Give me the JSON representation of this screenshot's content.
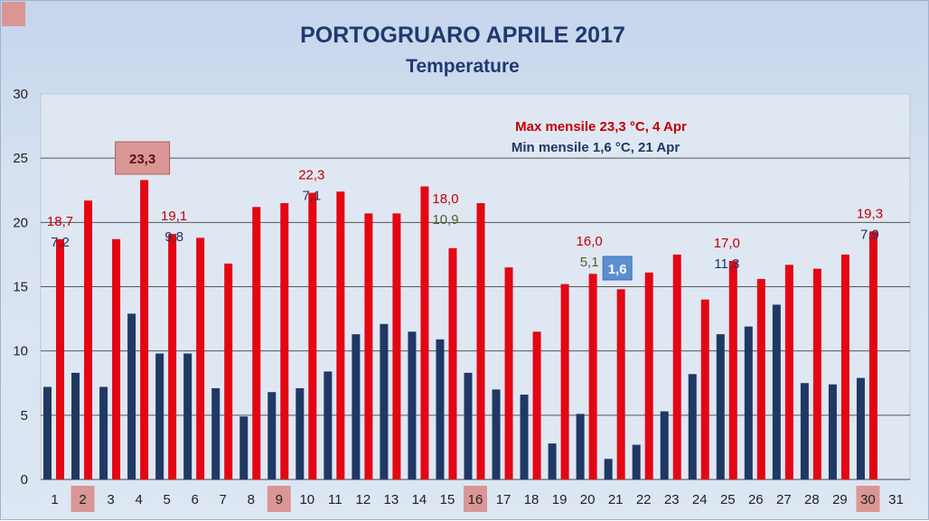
{
  "chart_data": {
    "type": "bar",
    "title": "PORTOGRUARO APRILE 2017",
    "subtitle": "Temperature",
    "categories": [
      "1",
      "2",
      "3",
      "4",
      "5",
      "6",
      "7",
      "8",
      "9",
      "10",
      "11",
      "12",
      "13",
      "14",
      "15",
      "16",
      "17",
      "18",
      "19",
      "20",
      "21",
      "22",
      "23",
      "24",
      "25",
      "26",
      "27",
      "28",
      "29",
      "30",
      "31"
    ],
    "highlighted_categories": [
      "2",
      "9",
      "16",
      "30"
    ],
    "ylim": [
      0,
      30
    ],
    "yticks": [
      0,
      5,
      10,
      15,
      20,
      25,
      30
    ],
    "grid": true,
    "series": [
      {
        "color": "#1f3864",
        "values": [
          7.2,
          8.3,
          7.2,
          12.9,
          9.8,
          9.8,
          7.1,
          4.9,
          6.8,
          7.1,
          8.4,
          11.3,
          12.1,
          11.5,
          10.9,
          8.3,
          7.0,
          6.6,
          2.8,
          5.1,
          1.6,
          2.7,
          5.3,
          8.2,
          11.3,
          11.9,
          13.6,
          7.5,
          7.4,
          7.9,
          null
        ]
      },
      {
        "color": "#e30613",
        "values": [
          18.7,
          21.7,
          18.7,
          23.3,
          19.1,
          18.8,
          16.8,
          21.2,
          21.5,
          22.3,
          22.4,
          20.7,
          20.7,
          22.8,
          18.0,
          21.5,
          16.5,
          11.5,
          15.2,
          16.0,
          14.8,
          16.1,
          17.5,
          14.0,
          17.0,
          15.6,
          16.7,
          16.4,
          17.5,
          19.3,
          null
        ]
      }
    ],
    "data_labels": [
      {
        "day": "1",
        "text": "18,7",
        "color": "#c00000"
      },
      {
        "day": "1",
        "text": "7,2",
        "color": "#1f3864"
      },
      {
        "day": "4",
        "text": "23,3",
        "color": "#5a1010",
        "boxed": true
      },
      {
        "day": "5",
        "text": "19,1",
        "color": "#c00000"
      },
      {
        "day": "5",
        "text": "9,8",
        "color": "#1f3864"
      },
      {
        "day": "10",
        "text": "22,3",
        "color": "#c00000"
      },
      {
        "day": "10",
        "text": "7,1",
        "color": "#1f3864"
      },
      {
        "day": "15",
        "text": "18,0",
        "color": "#c00000"
      },
      {
        "day": "15",
        "text": "10,9",
        "color": "#4f6228"
      },
      {
        "day": "20",
        "text": "16,0",
        "color": "#c00000"
      },
      {
        "day": "20",
        "text": "5,1",
        "color": "#4f6228"
      },
      {
        "day": "21",
        "text": "1,6",
        "color": "#ffffff",
        "boxed": true
      },
      {
        "day": "25",
        "text": "17,0",
        "color": "#c00000"
      },
      {
        "day": "25",
        "text": "11,3",
        "color": "#1f3864"
      },
      {
        "day": "30",
        "text": "19,3",
        "color": "#c00000"
      },
      {
        "day": "30",
        "text": "7,9",
        "color": "#1f3864"
      }
    ],
    "annotations": [
      {
        "text": "Max mensile 23,3 °C, 4 Apr",
        "color": "#c00000"
      },
      {
        "text": "Min mensile 1,6 °C, 21 Apr",
        "color": "#1f3864"
      }
    ]
  }
}
